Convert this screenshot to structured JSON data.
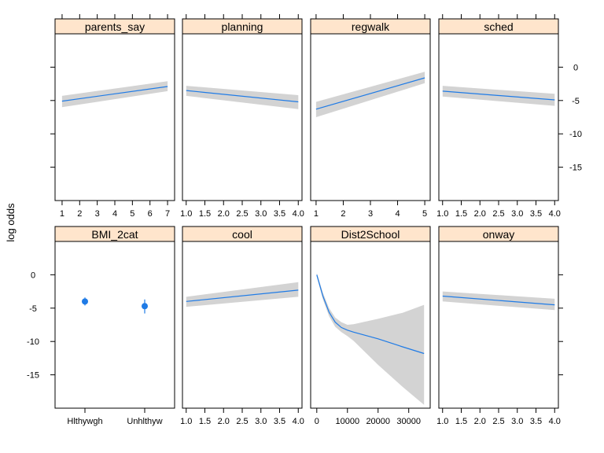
{
  "chart_data": {
    "type": "line",
    "layout": "lattice 4x2 effect plot",
    "ylabel": "log odds",
    "ylim": [
      -20,
      5
    ],
    "yticks": [
      0,
      -5,
      -10,
      -15
    ],
    "colors": {
      "line": "#1f7be6",
      "band": "#d3d3d3",
      "strip": "#ffe5cc",
      "point": "#1f7be6"
    },
    "panels": [
      {
        "title": "parents_say",
        "xlim": [
          0.6,
          7.4
        ],
        "xticks": [
          "1",
          "2",
          "3",
          "4",
          "5",
          "6",
          "7"
        ],
        "xtick_values": [
          1,
          2,
          3,
          4,
          5,
          6,
          7
        ],
        "x": [
          1,
          7
        ],
        "y": [
          -5.1,
          -2.9
        ],
        "lower": [
          -6.0,
          -3.6
        ],
        "upper": [
          -4.3,
          -2.1
        ]
      },
      {
        "title": "planning",
        "xlim": [
          0.9,
          4.1
        ],
        "xticks": [
          "1.0",
          "1.5",
          "2.0",
          "2.5",
          "3.0",
          "3.5",
          "4.0"
        ],
        "xtick_values": [
          1.0,
          1.5,
          2.0,
          2.5,
          3.0,
          3.5,
          4.0
        ],
        "x": [
          1,
          4
        ],
        "y": [
          -3.5,
          -5.2
        ],
        "lower": [
          -4.3,
          -6.3
        ],
        "upper": [
          -2.8,
          -4.2
        ]
      },
      {
        "title": "regwalk",
        "xlim": [
          0.8,
          5.2
        ],
        "xticks": [
          "1",
          "2",
          "3",
          "4",
          "5"
        ],
        "xtick_values": [
          1,
          2,
          3,
          4,
          5
        ],
        "x": [
          1,
          5
        ],
        "y": [
          -6.3,
          -1.6
        ],
        "lower": [
          -7.5,
          -2.4
        ],
        "upper": [
          -5.2,
          -0.7
        ]
      },
      {
        "title": "sched",
        "xlim": [
          0.9,
          4.1
        ],
        "xticks": [
          "1.0",
          "1.5",
          "2.0",
          "2.5",
          "3.0",
          "3.5",
          "4.0"
        ],
        "xtick_values": [
          1.0,
          1.5,
          2.0,
          2.5,
          3.0,
          3.5,
          4.0
        ],
        "x": [
          1,
          4
        ],
        "y": [
          -3.6,
          -4.9
        ],
        "lower": [
          -4.4,
          -5.8
        ],
        "upper": [
          -2.8,
          -4.0
        ]
      },
      {
        "title": "BMI_2cat",
        "type": "point",
        "xlim": [
          0.5,
          2.5
        ],
        "categories": [
          "Hlthywgh",
          "Unhlthyw"
        ],
        "values": [
          -4.0,
          -4.7
        ],
        "lower": [
          -4.6,
          -5.8
        ],
        "upper": [
          -3.4,
          -3.7
        ]
      },
      {
        "title": "cool",
        "xlim": [
          0.9,
          4.1
        ],
        "xticks": [
          "1.0",
          "1.5",
          "2.0",
          "2.5",
          "3.0",
          "3.5",
          "4.0"
        ],
        "xtick_values": [
          1.0,
          1.5,
          2.0,
          2.5,
          3.0,
          3.5,
          4.0
        ],
        "x": [
          1,
          4
        ],
        "y": [
          -4.0,
          -2.3
        ],
        "lower": [
          -4.8,
          -3.3
        ],
        "upper": [
          -3.3,
          -1.1
        ]
      },
      {
        "title": "Dist2School",
        "xlim": [
          -2000,
          37000
        ],
        "xticks": [
          "0",
          "10000",
          "20000",
          "30000"
        ],
        "xtick_values": [
          0,
          10000,
          20000,
          30000
        ],
        "x": [
          0,
          2000,
          4000,
          6000,
          8000,
          10000,
          12000,
          20000,
          28000,
          35000
        ],
        "y": [
          0.0,
          -3.2,
          -5.6,
          -7.1,
          -7.9,
          -8.3,
          -8.6,
          -9.6,
          -10.8,
          -11.8
        ],
        "lower": [
          -0.3,
          -3.7,
          -6.2,
          -7.8,
          -8.6,
          -9.2,
          -9.9,
          -13.5,
          -16.8,
          -19.5
        ],
        "upper": [
          0.3,
          -2.7,
          -5.0,
          -6.4,
          -7.1,
          -7.5,
          -7.4,
          -6.6,
          -5.7,
          -4.5
        ]
      },
      {
        "title": "onway",
        "xlim": [
          0.9,
          4.1
        ],
        "xticks": [
          "1.0",
          "1.5",
          "2.0",
          "2.5",
          "3.0",
          "3.5",
          "4.0"
        ],
        "xtick_values": [
          1.0,
          1.5,
          2.0,
          2.5,
          3.0,
          3.5,
          4.0
        ],
        "x": [
          1,
          4
        ],
        "y": [
          -3.2,
          -4.5
        ],
        "lower": [
          -4.0,
          -5.3
        ],
        "upper": [
          -2.5,
          -3.6
        ]
      }
    ]
  }
}
